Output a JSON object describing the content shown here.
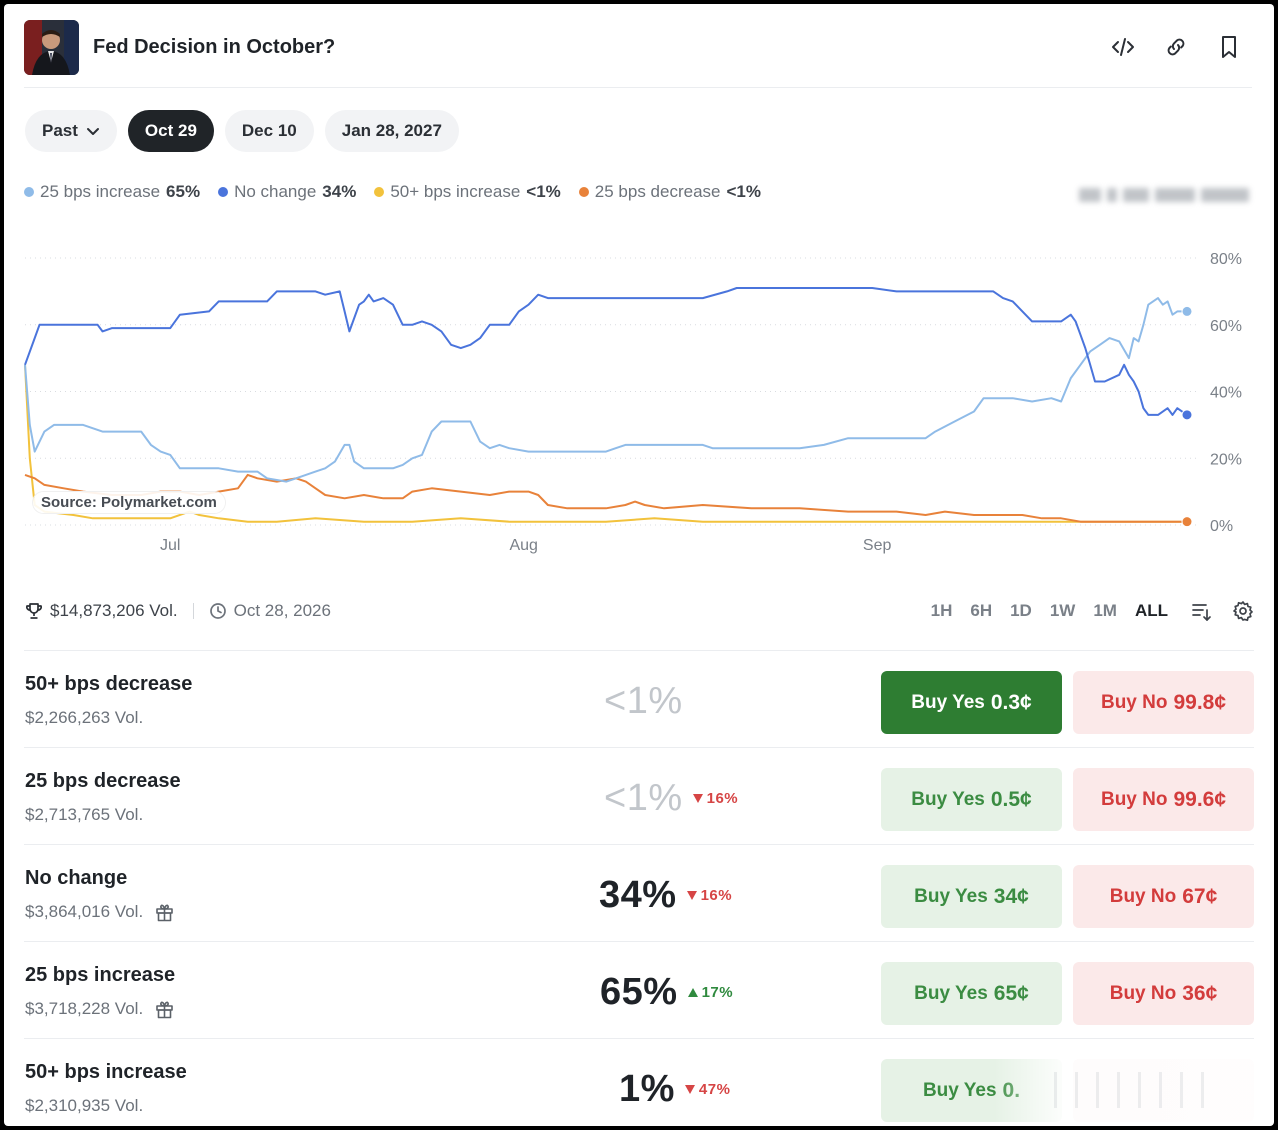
{
  "header": {
    "title": "Fed Decision in October?"
  },
  "tabs": [
    {
      "label": "Past",
      "dropdown": true,
      "active": false
    },
    {
      "label": "Oct 29",
      "active": true
    },
    {
      "label": "Dec 10",
      "active": false
    },
    {
      "label": "Jan 28, 2027",
      "active": false
    }
  ],
  "legend": [
    {
      "label": "25 bps increase",
      "value": "65%",
      "color": "#8fbbe8"
    },
    {
      "label": "No change",
      "value": "34%",
      "color": "#4a74dc"
    },
    {
      "label": "50+ bps increase",
      "value": "<1%",
      "color": "#f2c23c"
    },
    {
      "label": "25 bps decrease",
      "value": "<1%",
      "color": "#e8823a"
    }
  ],
  "chart": {
    "source_label": "Source: Polymarket.com"
  },
  "chart_data": {
    "type": "line",
    "x_tick_labels": [
      "Jul",
      "Aug",
      "Sep"
    ],
    "y_tick_labels": [
      "80%",
      "60%",
      "40%",
      "20%",
      "0%"
    ],
    "ylim": [
      0,
      80
    ],
    "grid": true,
    "series": [
      {
        "name": "No change",
        "color": "#4a74dc",
        "values": [
          [
            0,
            48
          ],
          [
            2,
            56
          ],
          [
            3,
            60
          ],
          [
            15,
            60
          ],
          [
            16,
            58
          ],
          [
            18,
            59
          ],
          [
            30,
            59
          ],
          [
            32,
            63
          ],
          [
            38,
            64
          ],
          [
            40,
            67
          ],
          [
            50,
            67
          ],
          [
            52,
            70
          ],
          [
            60,
            70
          ],
          [
            62,
            69
          ],
          [
            65,
            70
          ],
          [
            66,
            64
          ],
          [
            67,
            58
          ],
          [
            68,
            62
          ],
          [
            69,
            66
          ],
          [
            70,
            67
          ],
          [
            71,
            69
          ],
          [
            72,
            67
          ],
          [
            74,
            68
          ],
          [
            76,
            66
          ],
          [
            78,
            60
          ],
          [
            80,
            60
          ],
          [
            82,
            61
          ],
          [
            84,
            60
          ],
          [
            86,
            58
          ],
          [
            88,
            54
          ],
          [
            90,
            53
          ],
          [
            92,
            54
          ],
          [
            94,
            56
          ],
          [
            96,
            60
          ],
          [
            100,
            60
          ],
          [
            102,
            64
          ],
          [
            104,
            66
          ],
          [
            106,
            69
          ],
          [
            108,
            68
          ],
          [
            140,
            68
          ],
          [
            145,
            70
          ],
          [
            147,
            71
          ],
          [
            175,
            71
          ],
          [
            180,
            70
          ],
          [
            200,
            70
          ],
          [
            202,
            68
          ],
          [
            204,
            67
          ],
          [
            206,
            64
          ],
          [
            208,
            61
          ],
          [
            214,
            61
          ],
          [
            216,
            63
          ],
          [
            217,
            61
          ],
          [
            218,
            57
          ],
          [
            219,
            53
          ],
          [
            220,
            48
          ],
          [
            221,
            43
          ],
          [
            223,
            43
          ],
          [
            226,
            45
          ],
          [
            227,
            48
          ],
          [
            228,
            45
          ],
          [
            229,
            43
          ],
          [
            230,
            40
          ],
          [
            231,
            35
          ],
          [
            232,
            33
          ],
          [
            234,
            33
          ],
          [
            236,
            35
          ],
          [
            237,
            33
          ],
          [
            238,
            35
          ],
          [
            240,
            33
          ]
        ]
      },
      {
        "name": "25 bps increase",
        "color": "#8fbbe8",
        "values": [
          [
            0,
            48
          ],
          [
            1,
            30
          ],
          [
            2,
            22
          ],
          [
            4,
            28
          ],
          [
            6,
            30
          ],
          [
            12,
            30
          ],
          [
            16,
            28
          ],
          [
            24,
            28
          ],
          [
            26,
            24
          ],
          [
            28,
            22
          ],
          [
            30,
            21
          ],
          [
            32,
            17
          ],
          [
            40,
            17
          ],
          [
            44,
            16
          ],
          [
            48,
            16
          ],
          [
            50,
            14
          ],
          [
            54,
            13
          ],
          [
            56,
            14
          ],
          [
            58,
            15
          ],
          [
            60,
            16
          ],
          [
            62,
            17
          ],
          [
            64,
            19
          ],
          [
            66,
            24
          ],
          [
            67,
            24
          ],
          [
            68,
            19
          ],
          [
            70,
            17
          ],
          [
            76,
            17
          ],
          [
            78,
            18
          ],
          [
            80,
            20
          ],
          [
            82,
            21
          ],
          [
            84,
            28
          ],
          [
            86,
            31
          ],
          [
            92,
            31
          ],
          [
            94,
            25
          ],
          [
            96,
            23
          ],
          [
            98,
            24
          ],
          [
            100,
            23
          ],
          [
            104,
            22
          ],
          [
            120,
            22
          ],
          [
            122,
            23
          ],
          [
            124,
            24
          ],
          [
            140,
            24
          ],
          [
            142,
            23
          ],
          [
            160,
            23
          ],
          [
            165,
            24
          ],
          [
            170,
            26
          ],
          [
            186,
            26
          ],
          [
            188,
            28
          ],
          [
            192,
            31
          ],
          [
            196,
            34
          ],
          [
            198,
            38
          ],
          [
            204,
            38
          ],
          [
            208,
            37
          ],
          [
            212,
            38
          ],
          [
            214,
            37
          ],
          [
            216,
            44
          ],
          [
            218,
            48
          ],
          [
            220,
            52
          ],
          [
            222,
            54
          ],
          [
            224,
            56
          ],
          [
            226,
            55
          ],
          [
            228,
            50
          ],
          [
            229,
            56
          ],
          [
            230,
            55
          ],
          [
            231,
            60
          ],
          [
            232,
            66
          ],
          [
            234,
            68
          ],
          [
            235,
            66
          ],
          [
            236,
            67
          ],
          [
            237,
            63
          ],
          [
            238,
            64
          ],
          [
            240,
            64
          ]
        ]
      },
      {
        "name": "50+ bps increase",
        "color": "#f2c23c",
        "values": [
          [
            0,
            48
          ],
          [
            1,
            20
          ],
          [
            2,
            6
          ],
          [
            4,
            4
          ],
          [
            10,
            3
          ],
          [
            14,
            2
          ],
          [
            18,
            2
          ],
          [
            24,
            2
          ],
          [
            30,
            2
          ],
          [
            34,
            4
          ],
          [
            36,
            3
          ],
          [
            40,
            2
          ],
          [
            46,
            1
          ],
          [
            52,
            1
          ],
          [
            60,
            2
          ],
          [
            70,
            1
          ],
          [
            80,
            1
          ],
          [
            90,
            2
          ],
          [
            100,
            1
          ],
          [
            120,
            1
          ],
          [
            130,
            2
          ],
          [
            140,
            1
          ],
          [
            160,
            1
          ],
          [
            180,
            1
          ],
          [
            200,
            1
          ],
          [
            220,
            1
          ],
          [
            240,
            1
          ]
        ]
      },
      {
        "name": "25 bps decrease",
        "color": "#e8823a",
        "values": [
          [
            0,
            15
          ],
          [
            2,
            14
          ],
          [
            4,
            12
          ],
          [
            8,
            11
          ],
          [
            12,
            10
          ],
          [
            18,
            9
          ],
          [
            24,
            9
          ],
          [
            28,
            10
          ],
          [
            32,
            10
          ],
          [
            36,
            9
          ],
          [
            40,
            10
          ],
          [
            44,
            11
          ],
          [
            46,
            15
          ],
          [
            48,
            14
          ],
          [
            52,
            13
          ],
          [
            56,
            14
          ],
          [
            58,
            13
          ],
          [
            60,
            11
          ],
          [
            62,
            9
          ],
          [
            66,
            8
          ],
          [
            70,
            9
          ],
          [
            74,
            8
          ],
          [
            78,
            8
          ],
          [
            80,
            10
          ],
          [
            84,
            11
          ],
          [
            90,
            10
          ],
          [
            96,
            9
          ],
          [
            100,
            10
          ],
          [
            104,
            10
          ],
          [
            106,
            9
          ],
          [
            108,
            6
          ],
          [
            112,
            5
          ],
          [
            120,
            5
          ],
          [
            124,
            6
          ],
          [
            126,
            7
          ],
          [
            128,
            6
          ],
          [
            132,
            5
          ],
          [
            140,
            6
          ],
          [
            150,
            5
          ],
          [
            160,
            5
          ],
          [
            170,
            4
          ],
          [
            180,
            4
          ],
          [
            186,
            3
          ],
          [
            190,
            4
          ],
          [
            196,
            3
          ],
          [
            200,
            3
          ],
          [
            206,
            3
          ],
          [
            210,
            2
          ],
          [
            214,
            2
          ],
          [
            218,
            1
          ],
          [
            230,
            1
          ],
          [
            240,
            1
          ]
        ]
      }
    ]
  },
  "stats": {
    "volume": "$14,873,206 Vol.",
    "end_date": "Oct 28, 2026",
    "ranges": [
      "1H",
      "6H",
      "1D",
      "1W",
      "1M",
      "ALL"
    ],
    "active_range": "ALL"
  },
  "outcomes": [
    {
      "name": "50+ bps decrease",
      "volume": "$2,266,263 Vol.",
      "pct": "<1%",
      "dim": true,
      "change": "",
      "direction": "",
      "gift": false,
      "yes_label": "Buy Yes",
      "yes_price": "0.3¢",
      "yes_solid": true,
      "no_label": "Buy No",
      "no_price": "99.8¢"
    },
    {
      "name": "25 bps decrease",
      "volume": "$2,713,765 Vol.",
      "pct": "<1%",
      "dim": true,
      "change": "16%",
      "direction": "down",
      "gift": false,
      "yes_label": "Buy Yes",
      "yes_price": "0.5¢",
      "yes_solid": false,
      "no_label": "Buy No",
      "no_price": "99.6¢"
    },
    {
      "name": "No change",
      "volume": "$3,864,016 Vol.",
      "pct": "34%",
      "dim": false,
      "change": "16%",
      "direction": "down",
      "gift": true,
      "yes_label": "Buy Yes",
      "yes_price": "34¢",
      "yes_solid": false,
      "no_label": "Buy No",
      "no_price": "67¢"
    },
    {
      "name": "25 bps increase",
      "volume": "$3,718,228 Vol.",
      "pct": "65%",
      "dim": false,
      "change": "17%",
      "direction": "up",
      "gift": true,
      "yes_label": "Buy Yes",
      "yes_price": "65¢",
      "yes_solid": false,
      "no_label": "Buy No",
      "no_price": "36¢"
    },
    {
      "name": "50+ bps increase",
      "volume": "$2,310,935 Vol.",
      "pct": "1%",
      "dim": false,
      "change": "47%",
      "direction": "down",
      "gift": false,
      "yes_label": "Buy Yes",
      "yes_price": "0.",
      "yes_solid": false,
      "no_label": "",
      "no_price": ""
    }
  ]
}
